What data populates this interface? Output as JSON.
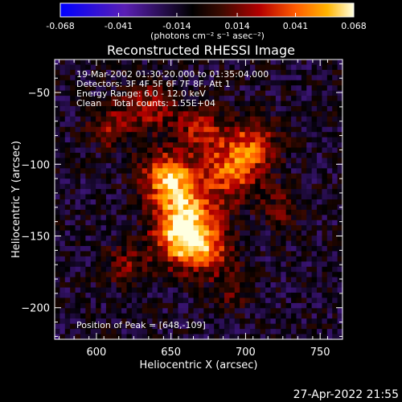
{
  "colorbar": {
    "tick_labels": [
      "-0.068",
      "-0.041",
      "-0.014",
      "0.014",
      "0.041",
      "0.068"
    ],
    "tick_values": [
      -0.068,
      -0.041,
      -0.014,
      0.014,
      0.041,
      0.068
    ],
    "range": [
      -0.068,
      0.068
    ],
    "unit_label": "(photons cm⁻² s⁻¹ asec⁻²)",
    "colors": [
      "#0000ff",
      "#5a1fb4",
      "#000000",
      "#3c0a00",
      "#b40000",
      "#ff5a00",
      "#ffb400",
      "#ffffe0"
    ]
  },
  "chart_data": {
    "type": "heatmap",
    "title": "Reconstructed RHESSI Image",
    "xlabel": "Heliocentric X (arcsec)",
    "ylabel": "Heliocentric Y (arcsec)",
    "xlim": [
      572,
      765
    ],
    "ylim": [
      -222,
      -27
    ],
    "xticks": [
      600,
      650,
      700,
      750
    ],
    "yticks": [
      -200,
      -150,
      -100,
      -50
    ],
    "xtick_labels": [
      "600",
      "650",
      "700",
      "750"
    ],
    "ytick_labels": [
      "−200",
      "−150",
      "−100",
      "−50"
    ],
    "annotations": [
      "19-Mar-2002 01:30:20.000 to 01:35:04.000",
      "Detectors: 3F 4F 5F 6F 7F 8F, Att 1",
      "Energy Range: 6.0 - 12.0 keV",
      "Clean    Total counts: 1.55E+04"
    ],
    "peak_label": "Position of Peak = [648,-109]",
    "peak": [
      648,
      -109
    ],
    "sources": [
      {
        "x": 648,
        "y": -109,
        "amp": 0.066,
        "sigma": 12
      },
      {
        "x": 660,
        "y": -135,
        "amp": 0.062,
        "sigma": 14
      },
      {
        "x": 655,
        "y": -155,
        "amp": 0.05,
        "sigma": 12
      },
      {
        "x": 675,
        "y": -160,
        "amp": 0.045,
        "sigma": 12
      },
      {
        "x": 690,
        "y": -105,
        "amp": 0.05,
        "sigma": 14
      },
      {
        "x": 705,
        "y": -85,
        "amp": 0.04,
        "sigma": 12
      },
      {
        "x": 635,
        "y": -60,
        "amp": 0.035,
        "sigma": 12
      },
      {
        "x": 610,
        "y": -75,
        "amp": 0.03,
        "sigma": 10
      },
      {
        "x": 670,
        "y": -75,
        "amp": 0.035,
        "sigma": 12
      },
      {
        "x": 620,
        "y": -170,
        "amp": 0.025,
        "sigma": 10
      },
      {
        "x": 725,
        "y": -130,
        "amp": 0.02,
        "sigma": 10
      },
      {
        "x": 690,
        "y": -190,
        "amp": 0.015,
        "sigma": 10
      }
    ]
  },
  "footer_date": "27-Apr-2022 21:55"
}
